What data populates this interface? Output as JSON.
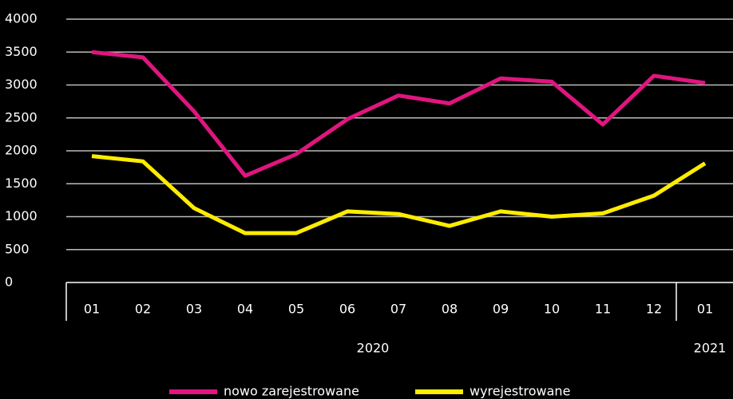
{
  "chart_data": {
    "type": "line",
    "categories": [
      "01",
      "02",
      "03",
      "04",
      "05",
      "06",
      "07",
      "08",
      "09",
      "10",
      "11",
      "12",
      "01"
    ],
    "x_groups": [
      {
        "label": "2020",
        "count": 12
      },
      {
        "label": "2021",
        "count": 1
      }
    ],
    "series": [
      {
        "name": "nowo zarejestrowane",
        "color": "#e0157f",
        "values": [
          3500,
          3420,
          2600,
          1620,
          1950,
          2480,
          2840,
          2720,
          3100,
          3050,
          2400,
          3140,
          3030
        ]
      },
      {
        "name": "wyrejestrowane",
        "color": "#ffec00",
        "values": [
          1920,
          1840,
          1130,
          750,
          750,
          1080,
          1040,
          860,
          1080,
          1000,
          1050,
          1320,
          1810
        ]
      }
    ],
    "ylim": [
      0,
      4000
    ],
    "yticks": [
      0,
      500,
      1000,
      1500,
      2000,
      2500,
      3000,
      3500,
      4000
    ],
    "grid": true
  }
}
